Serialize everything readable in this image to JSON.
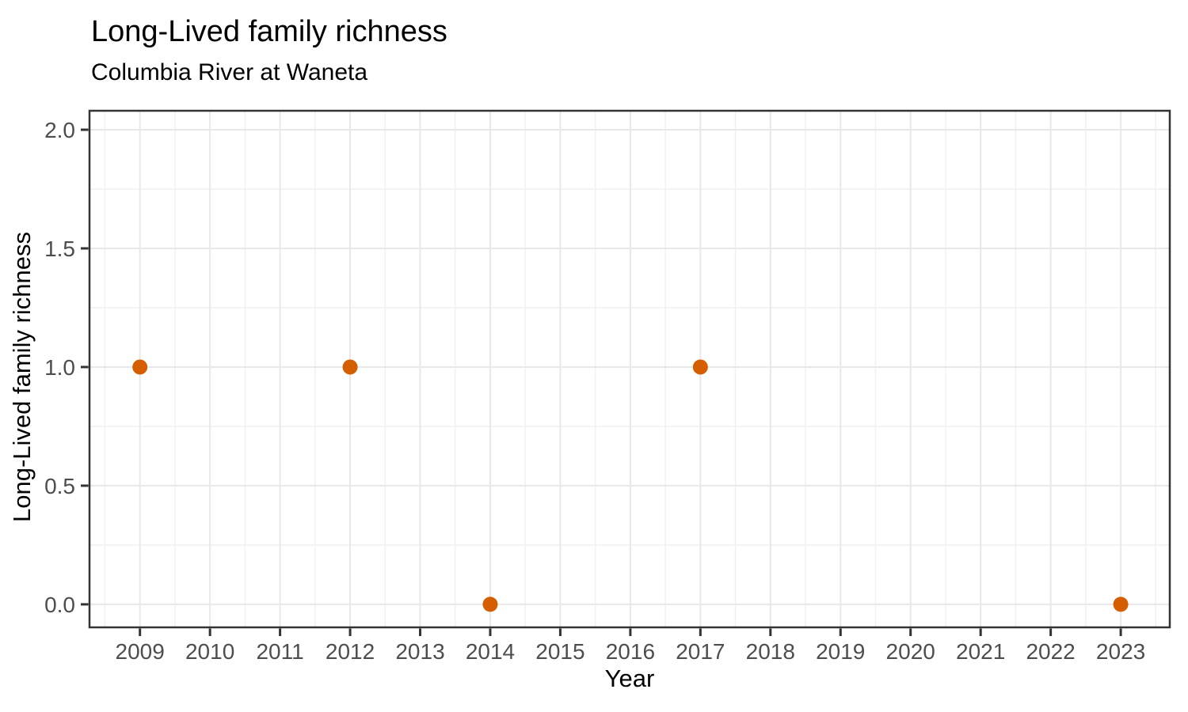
{
  "chart_data": {
    "type": "scatter",
    "title": "Long-Lived family richness",
    "subtitle": "Columbia River at Waneta",
    "xlabel": "Year",
    "ylabel": "Long-Lived family richness",
    "points": [
      {
        "x": 2009,
        "y": 1.0
      },
      {
        "x": 2012,
        "y": 1.0
      },
      {
        "x": 2014,
        "y": 0.0
      },
      {
        "x": 2017,
        "y": 1.0
      },
      {
        "x": 2023,
        "y": 0.0
      }
    ],
    "xlim": [
      2008.28,
      2023.7
    ],
    "ylim": [
      -0.097,
      2.08
    ],
    "x_ticks": [
      2009,
      2010,
      2011,
      2012,
      2013,
      2014,
      2015,
      2016,
      2017,
      2018,
      2019,
      2020,
      2021,
      2022,
      2023
    ],
    "x_minor_ticks": [
      2008.5,
      2009.5,
      2010.5,
      2011.5,
      2012.5,
      2013.5,
      2014.5,
      2015.5,
      2016.5,
      2017.5,
      2018.5,
      2019.5,
      2020.5,
      2021.5,
      2022.5,
      2023.5
    ],
    "y_ticks": [
      0.0,
      0.5,
      1.0,
      1.5,
      2.0
    ],
    "y_tick_labels": [
      "0.0",
      "0.5",
      "1.0",
      "1.5",
      "2.0"
    ],
    "y_minor_ticks": [
      0.25,
      0.75,
      1.25,
      1.75
    ],
    "grid": "major-and-minor",
    "legend": "none",
    "colors": {
      "point": "#D55E00",
      "grid_major": "#E8E8E8",
      "grid_minor": "#F1F1F1",
      "panel_border": "#333333",
      "tick": "#333333",
      "tick_label": "#4D4D4D",
      "title_text": "#000000",
      "background": "#FFFFFF"
    }
  }
}
